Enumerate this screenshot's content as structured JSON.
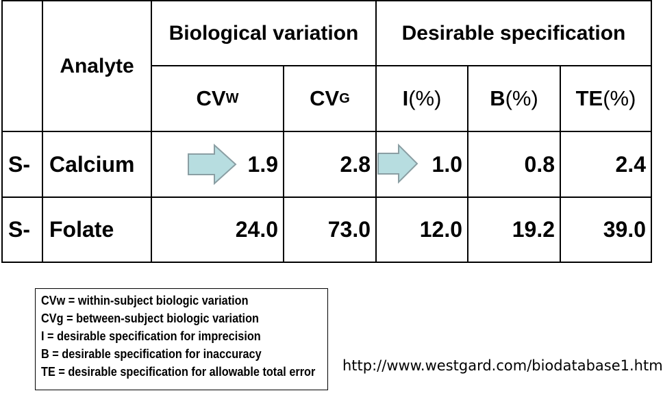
{
  "table": {
    "header_analyte": "Analyte",
    "group_biological": "Biological variation",
    "group_desirable": "Desirable specification",
    "cols": {
      "cvw": {
        "main": "CV",
        "sub": "W"
      },
      "cvg": {
        "main": "CV",
        "sub": "G"
      },
      "i": {
        "main": "I",
        "unit": "(%)"
      },
      "b": {
        "main": "B",
        "unit": "(%)"
      },
      "te": {
        "main": "TE",
        "unit": "(%)"
      }
    },
    "rows": [
      {
        "prefix": "S-",
        "analyte": "Calcium",
        "cvw": "1.9",
        "cvg": "2.8",
        "i": "1.0",
        "b": "0.8",
        "te": "2.4"
      },
      {
        "prefix": "S-",
        "analyte": "Folate",
        "cvw": "24.0",
        "cvg": "73.0",
        "i": "12.0",
        "b": "19.2",
        "te": "39.0"
      }
    ]
  },
  "arrow_colors": {
    "fill": "#b7dde0",
    "stroke": "#8a9ea3"
  },
  "legend": [
    "CVw = within-subject biologic variation",
    "CVg = between-subject biologic variation",
    "I = desirable specification for imprecision",
    "B = desirable specification for inaccuracy",
    "TE = desirable specification for allowable total error"
  ],
  "url": "http://www.westgard.com/biodatabase1.htm"
}
